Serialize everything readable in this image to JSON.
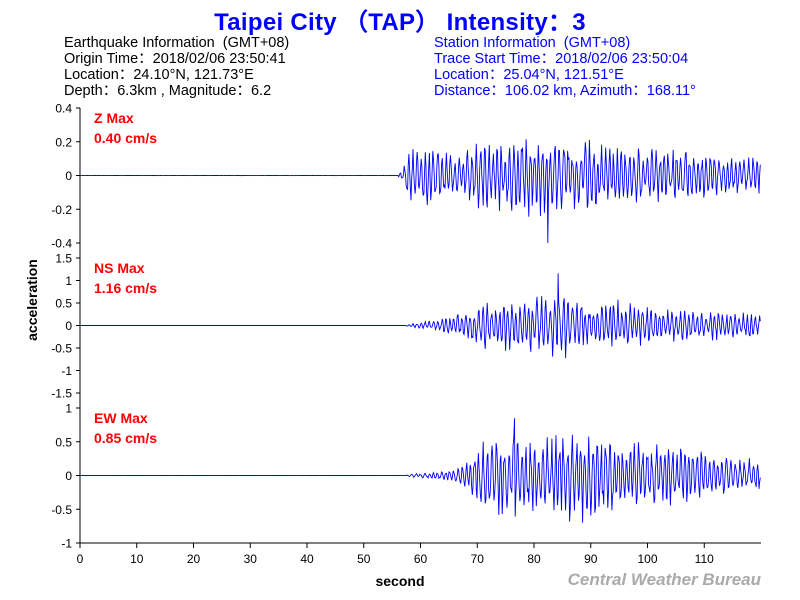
{
  "header": {
    "title": "Taipei City （TAP） Intensity：3"
  },
  "earthquake_info": {
    "heading": "Earthquake Information  (GMT+08)",
    "origin_time": "Origin Time：2018/02/06 23:50:41",
    "location": "Location：24.10°N, 121.73°E",
    "depth_magnitude": "Depth：6.3km , Magnitude：6.2"
  },
  "station_info": {
    "heading": "Station Information  (GMT+08)",
    "trace_start": "Trace Start Time：2018/02/06 23:50:04",
    "location": "Location：25.04°N, 121.51°E",
    "distance_azimuth": "Distance：106.02 km, Azimuth：168.11°"
  },
  "footer": {
    "credit": "Central Weather Bureau"
  },
  "colors": {
    "title": "#0000ff",
    "trace": "#0000ff",
    "max_label": "#ff0000",
    "credit": "#aaaaaa"
  },
  "chart_data": {
    "type": "line",
    "xlabel": "second",
    "ylabel": "acceleration",
    "xlim": [
      0,
      120
    ],
    "xticks": [
      0,
      10,
      20,
      30,
      40,
      50,
      60,
      70,
      80,
      90,
      100,
      110
    ],
    "grid": false,
    "panels": [
      {
        "name": "Z",
        "max_title": "Z Max",
        "max_value": "0.40 cm/s",
        "ylim": [
          -0.4,
          0.4
        ],
        "yticks": [
          -0.4,
          -0.2,
          0,
          0.2,
          0.4
        ],
        "envelope_x": [
          0,
          56,
          57,
          58,
          59,
          62,
          65,
          70,
          75,
          78,
          80,
          85,
          90,
          95,
          100,
          105,
          110,
          115,
          120
        ],
        "envelope_amp": [
          0.002,
          0.002,
          0.06,
          0.22,
          0.15,
          0.18,
          0.14,
          0.2,
          0.22,
          0.3,
          0.26,
          0.22,
          0.22,
          0.18,
          0.16,
          0.18,
          0.15,
          0.12,
          0.12
        ],
        "peak_x": 82.5,
        "peak_value": -0.4
      },
      {
        "name": "NS",
        "max_title": "NS Max",
        "max_value": "1.16 cm/s",
        "ylim": [
          -1.5,
          1.5
        ],
        "yticks": [
          -1.5,
          -1,
          -0.5,
          0,
          0.5,
          1,
          1.5
        ],
        "envelope_x": [
          0,
          57,
          59,
          62,
          65,
          68,
          70,
          75,
          80,
          84,
          87,
          90,
          95,
          100,
          105,
          110,
          115,
          120
        ],
        "envelope_amp": [
          0.002,
          0.002,
          0.05,
          0.12,
          0.2,
          0.3,
          0.55,
          0.6,
          0.65,
          0.75,
          0.65,
          0.5,
          0.55,
          0.45,
          0.4,
          0.35,
          0.3,
          0.3
        ],
        "peak_x": 84.3,
        "peak_value": 1.16
      },
      {
        "name": "EW",
        "max_title": "EW Max",
        "max_value": "0.85 cm/s",
        "ylim": [
          -1,
          1
        ],
        "yticks": [
          -1,
          -0.5,
          0,
          0.5,
          1
        ],
        "envelope_x": [
          0,
          57,
          59,
          62,
          65,
          68,
          70,
          73,
          77,
          80,
          85,
          88,
          91,
          95,
          100,
          105,
          110,
          115,
          120
        ],
        "envelope_amp": [
          0.002,
          0.002,
          0.03,
          0.05,
          0.08,
          0.2,
          0.45,
          0.6,
          0.7,
          0.55,
          0.65,
          0.75,
          0.7,
          0.6,
          0.5,
          0.45,
          0.35,
          0.25,
          0.3
        ],
        "peak_x": 76.5,
        "peak_value": 0.85
      }
    ]
  }
}
